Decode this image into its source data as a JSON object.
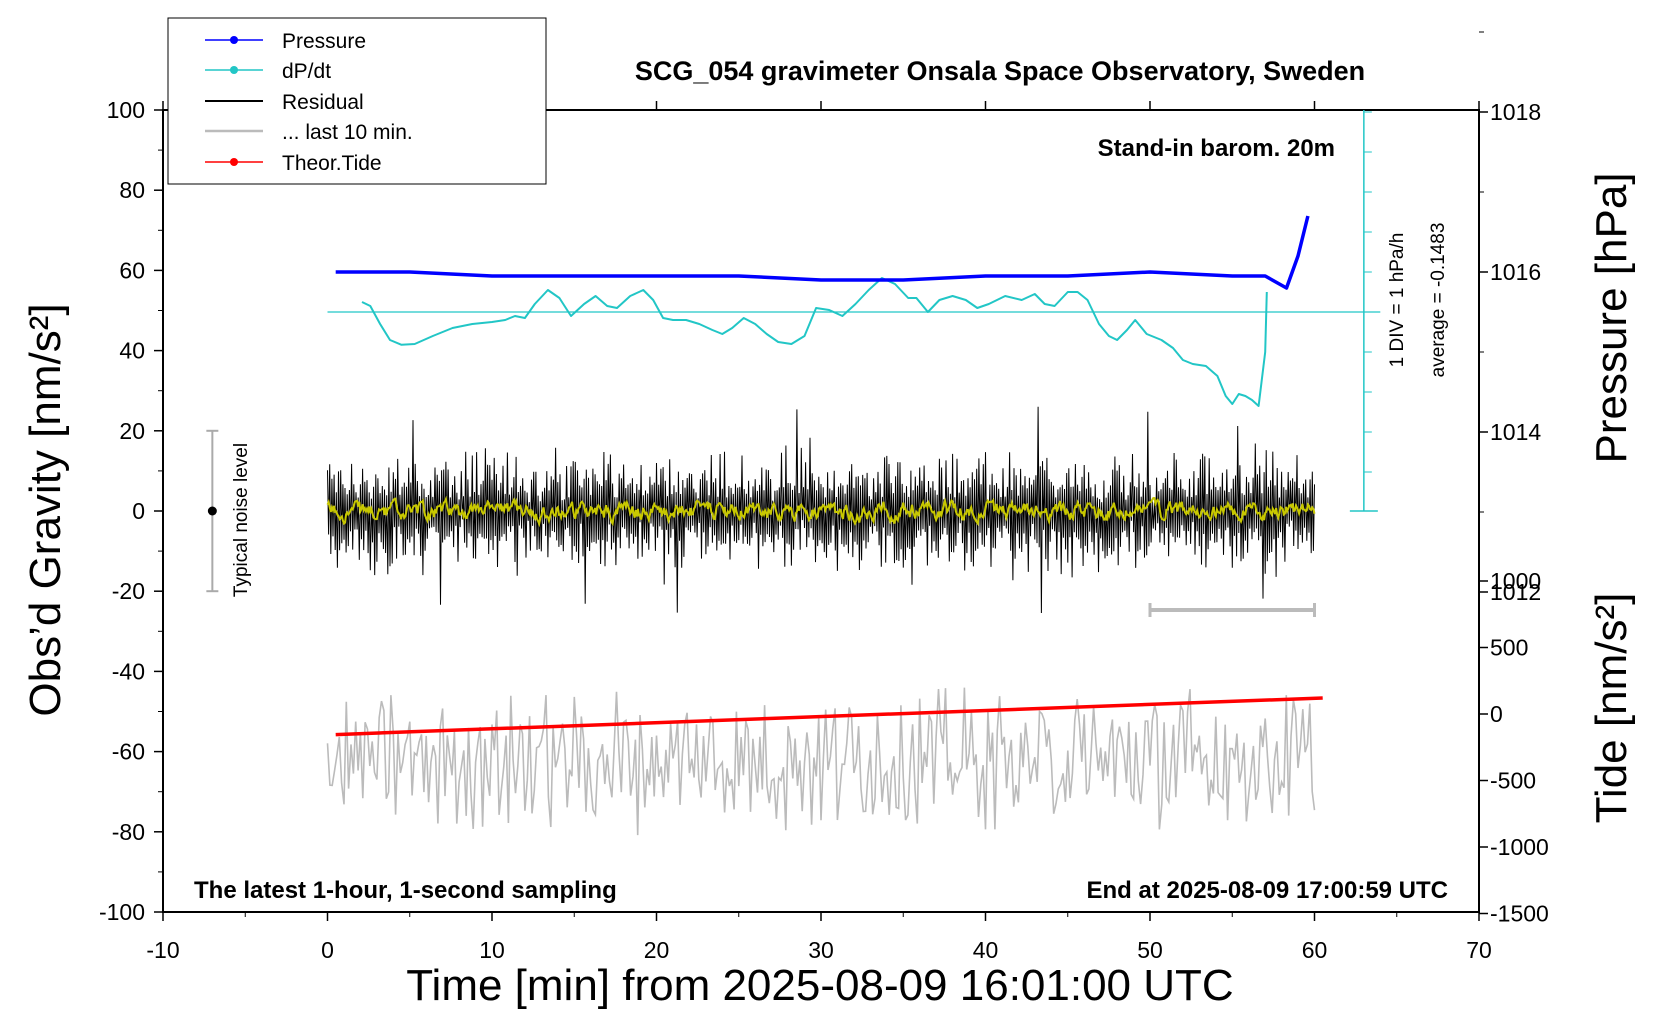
{
  "chart_data": {
    "type": "line",
    "title": "SCG_054 gravimeter Onsala Space Observatory, Sweden",
    "xlabel": "Time [min] from 2025-08-09 16:01:00 UTC",
    "ylabel_left": "Obs’d Gravity [nm/s²]",
    "ylabel_right_top": "Pressure [hPa]",
    "ylabel_right_bottom": "Tide [nm/s²]",
    "xlim": [
      -10,
      70
    ],
    "ylim_left": [
      -100,
      100
    ],
    "x_ticks": [
      "-10",
      "0",
      "10",
      "20",
      "30",
      "40",
      "50",
      "60",
      "70"
    ],
    "y_left_ticks": [
      "100",
      "80",
      "60",
      "40",
      "20",
      "0",
      "-20",
      "-40",
      "-60",
      "-80",
      "-100"
    ],
    "pressure_ticks": [
      "1018",
      "1016",
      "1014",
      "1012"
    ],
    "tide_ticks": [
      "1000",
      "500",
      "0",
      "-500",
      "-1000",
      "-1500"
    ],
    "annotations": {
      "barometer": "Stand-in barom. 20m",
      "latest": "The latest 1-hour, 1-second sampling",
      "end": "End at 2025-08-09 17:00:59 UTC",
      "noise": "Typical noise level",
      "div": "1 DIV = 1 hPa/h",
      "average": "average = -0.1483"
    },
    "legend": [
      "Pressure",
      "dP/dt",
      "Residual",
      "... last 10 min.",
      "Theor.Tide"
    ],
    "colors": {
      "pressure": "#0000ff",
      "dpdt": "#22c6c6",
      "residual": "#000000",
      "residual_smooth": "#c8c800",
      "last10": "#bbbbbb",
      "tide": "#ff0000",
      "noise_bar": "#aaaaaa"
    },
    "pressure_series": {
      "name": "Pressure",
      "unit": "hPa",
      "x": [
        0.5,
        5,
        10,
        15,
        20,
        25,
        30,
        35,
        40,
        45,
        50,
        55,
        57,
        58.3,
        59,
        59.6
      ],
      "y": [
        1016.0,
        1016.0,
        1015.95,
        1015.95,
        1015.95,
        1015.95,
        1015.9,
        1015.9,
        1015.95,
        1015.95,
        1016.0,
        1015.95,
        1015.95,
        1015.8,
        1016.2,
        1016.7
      ]
    },
    "dpdt_series": {
      "name": "dP/dt",
      "unit": "hPa/h",
      "x": [
        2.1,
        2.6,
        3.2,
        3.8,
        4.5,
        5.3,
        6.4,
        7.6,
        8.8,
        10.0,
        10.8,
        11.4,
        12.0,
        12.6,
        13.4,
        14.1,
        14.8,
        15.6,
        16.3,
        17.0,
        17.6,
        18.4,
        19.2,
        19.8,
        20.4,
        21.0,
        21.8,
        22.6,
        23.4,
        24.0,
        24.6,
        25.3,
        26.0,
        26.7,
        27.4,
        28.2,
        29.0,
        29.7,
        30.5,
        31.3,
        32.1,
        32.9,
        33.7,
        34.5,
        35.3,
        35.8,
        36.5,
        37.2,
        38.0,
        38.8,
        39.5,
        40.2,
        41.2,
        42.2,
        43.0,
        43.6,
        44.2,
        45.0,
        45.6,
        46.2,
        46.9,
        47.5,
        48.0,
        48.6,
        49.1,
        49.8,
        50.7,
        51.4,
        52.0,
        52.6,
        53.4,
        54.1,
        54.6,
        55.0,
        55.4,
        55.8,
        56.2,
        56.6,
        57.0,
        57.1
      ],
      "y": [
        0.25,
        0.15,
        -0.3,
        -0.7,
        -0.82,
        -0.8,
        -0.6,
        -0.4,
        -0.3,
        -0.25,
        -0.2,
        -0.1,
        -0.15,
        0.2,
        0.55,
        0.35,
        -0.1,
        0.2,
        0.4,
        0.15,
        0.1,
        0.4,
        0.55,
        0.3,
        -0.15,
        -0.2,
        -0.2,
        -0.3,
        -0.45,
        -0.55,
        -0.4,
        -0.15,
        -0.3,
        -0.55,
        -0.75,
        -0.8,
        -0.6,
        0.1,
        0.05,
        -0.1,
        0.2,
        0.55,
        0.85,
        0.7,
        0.35,
        0.35,
        0.0,
        0.3,
        0.4,
        0.3,
        0.1,
        0.2,
        0.4,
        0.3,
        0.45,
        0.2,
        0.15,
        0.5,
        0.5,
        0.3,
        -0.3,
        -0.6,
        -0.7,
        -0.45,
        -0.2,
        -0.55,
        -0.7,
        -0.9,
        -1.2,
        -1.3,
        -1.35,
        -1.6,
        -2.1,
        -2.3,
        -2.05,
        -2.1,
        -2.2,
        -2.35,
        -1.0,
        0.5
      ]
    },
    "residual": {
      "name": "Residual",
      "x_start": 0,
      "x_end": 60,
      "amplitude_typical": 12,
      "min": -29,
      "max": 28
    },
    "last10": {
      "name": "... last 10 min.",
      "x_start": 50,
      "x_end": 60,
      "y_center": -62
    },
    "tide_series": {
      "name": "Theor.Tide",
      "unit": "nm/s²",
      "x": [
        0.5,
        60.5
      ],
      "y": [
        -155,
        120
      ]
    },
    "noise_level": {
      "x": -7,
      "center": 0,
      "low": -20,
      "high": 20
    }
  }
}
